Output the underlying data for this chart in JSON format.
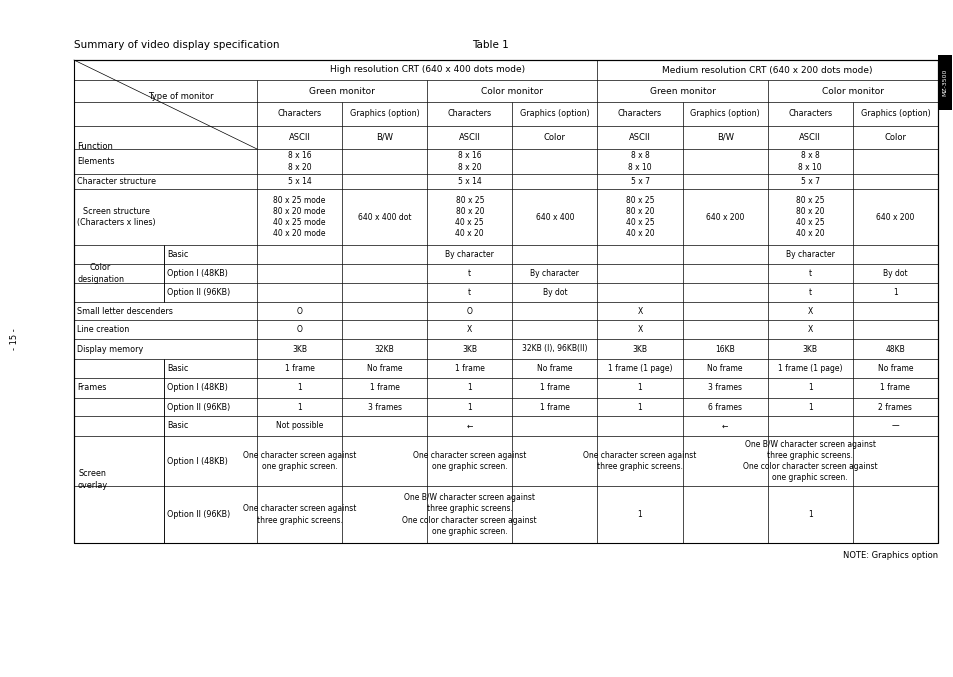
{
  "title_left": "Summary of video display specification",
  "title_right": "Table 1",
  "bg_color": "#ffffff",
  "header1": [
    "High resolution CRT (640 x 400 dots mode)",
    "Medium resolution CRT (640 x 200 dots mode)"
  ],
  "header2_labels": [
    "Green monitor",
    "Color monitor",
    "Green monitor",
    "Color monitor"
  ],
  "header3_labels": [
    "Characters",
    "Graphics (option)",
    "Characters",
    "Graphics (option)",
    "Characters",
    "Graphics (option)",
    "Characters",
    "Graphics (option)"
  ],
  "header4_labels": [
    "ASCII",
    "B/W",
    "ASCII",
    "Color",
    "ASCII",
    "B/W",
    "ASCII",
    "Color"
  ],
  "note": "NOTE: Graphics option",
  "side_tab_text": "MZ-3500"
}
